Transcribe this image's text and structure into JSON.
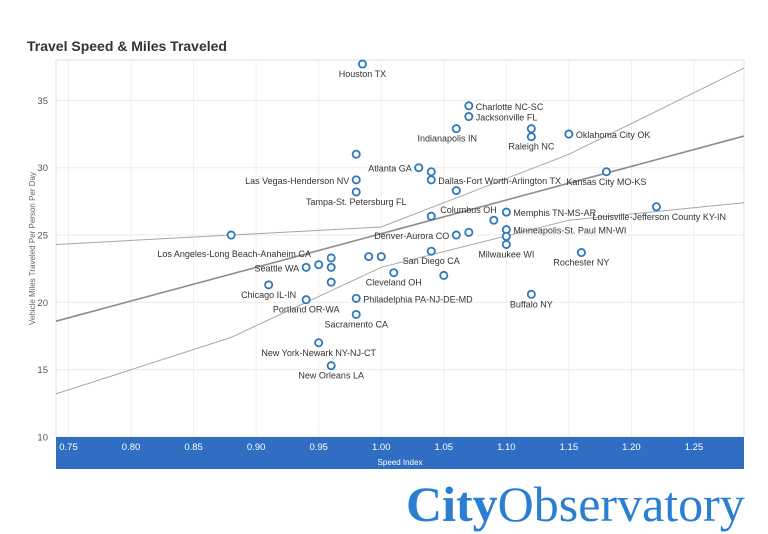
{
  "chart_data": {
    "type": "scatter",
    "title": "Travel Speed & Miles Traveled",
    "xlabel": "Speed Index",
    "ylabel": "Vehicle Miles Traveled Per Person Per Day",
    "xlim": [
      0.74,
      1.29
    ],
    "ylim": [
      10,
      38
    ],
    "xticks": [
      "0.75",
      "0.80",
      "0.85",
      "0.90",
      "0.95",
      "1.00",
      "1.05",
      "1.10",
      "1.15",
      "1.20",
      "1.25"
    ],
    "yticks": [
      "10",
      "15",
      "20",
      "25",
      "30",
      "35"
    ],
    "grid": true,
    "points": [
      {
        "x": 0.985,
        "y": 37.7,
        "label": "Houston TX"
      },
      {
        "x": 1.07,
        "y": 34.6,
        "label": "Charlotte NC-SC"
      },
      {
        "x": 1.07,
        "y": 33.8,
        "label": "Jacksonville FL"
      },
      {
        "x": 1.06,
        "y": 32.9,
        "label": "Indianapolis IN"
      },
      {
        "x": 1.12,
        "y": 32.9,
        "label": ""
      },
      {
        "x": 1.12,
        "y": 32.3,
        "label": "Raleigh NC"
      },
      {
        "x": 1.15,
        "y": 32.5,
        "label": "Oklahoma City OK"
      },
      {
        "x": 0.98,
        "y": 31.0,
        "label": ""
      },
      {
        "x": 1.03,
        "y": 30.0,
        "label": "Atlanta GA"
      },
      {
        "x": 1.04,
        "y": 29.7,
        "label": ""
      },
      {
        "x": 1.04,
        "y": 29.1,
        "label": "Dallas-Fort Worth-Arlington TX"
      },
      {
        "x": 0.98,
        "y": 29.1,
        "label": "Las Vegas-Henderson NV"
      },
      {
        "x": 1.18,
        "y": 29.7,
        "label": "Kansas City MO-KS"
      },
      {
        "x": 0.98,
        "y": 28.2,
        "label": "Tampa-St. Petersburg FL"
      },
      {
        "x": 1.06,
        "y": 28.3,
        "label": ""
      },
      {
        "x": 1.22,
        "y": 27.1,
        "label": "Louisville-Jefferson County KY-IN"
      },
      {
        "x": 1.1,
        "y": 26.7,
        "label": "Memphis TN-MS-AR"
      },
      {
        "x": 1.04,
        "y": 26.4,
        "label": "Columbus OH"
      },
      {
        "x": 1.09,
        "y": 26.1,
        "label": ""
      },
      {
        "x": 1.1,
        "y": 25.4,
        "label": "Minneapolis-St. Paul MN-WI"
      },
      {
        "x": 1.1,
        "y": 24.9,
        "label": ""
      },
      {
        "x": 1.07,
        "y": 25.2,
        "label": ""
      },
      {
        "x": 1.06,
        "y": 25.0,
        "label": "Denver-Aurora CO"
      },
      {
        "x": 1.1,
        "y": 24.3,
        "label": "Milwaukee WI"
      },
      {
        "x": 0.88,
        "y": 25.0,
        "label": "Los Angeles-Long Beach-Anaheim CA"
      },
      {
        "x": 1.04,
        "y": 23.8,
        "label": "San Diego CA"
      },
      {
        "x": 1.16,
        "y": 23.7,
        "label": "Rochester NY"
      },
      {
        "x": 0.99,
        "y": 23.4,
        "label": ""
      },
      {
        "x": 1.0,
        "y": 23.4,
        "label": ""
      },
      {
        "x": 0.96,
        "y": 23.3,
        "label": ""
      },
      {
        "x": 0.95,
        "y": 22.8,
        "label": ""
      },
      {
        "x": 0.96,
        "y": 22.6,
        "label": ""
      },
      {
        "x": 0.94,
        "y": 22.6,
        "label": "Seattle WA"
      },
      {
        "x": 1.01,
        "y": 22.2,
        "label": "Cleveland OH"
      },
      {
        "x": 1.05,
        "y": 22.0,
        "label": ""
      },
      {
        "x": 0.96,
        "y": 21.5,
        "label": ""
      },
      {
        "x": 0.91,
        "y": 21.3,
        "label": "Chicago IL-IN"
      },
      {
        "x": 0.98,
        "y": 20.3,
        "label": "Philadelphia PA-NJ-DE-MD"
      },
      {
        "x": 0.94,
        "y": 20.2,
        "label": "Portland OR-WA"
      },
      {
        "x": 1.12,
        "y": 20.6,
        "label": "Buffalo NY"
      },
      {
        "x": 0.98,
        "y": 19.1,
        "label": "Sacramento CA"
      },
      {
        "x": 0.95,
        "y": 17.0,
        "label": "New York-Newark NY-NJ-CT"
      },
      {
        "x": 0.96,
        "y": 15.3,
        "label": "New Orleans LA"
      }
    ],
    "trend": {
      "slope": 25.0,
      "intercept": 0.1
    },
    "band": {
      "upper": [
        [
          0.74,
          24.3
        ],
        [
          1.0,
          25.6
        ],
        [
          1.15,
          31.0
        ],
        [
          1.29,
          37.4
        ]
      ],
      "lower": [
        [
          0.74,
          13.2
        ],
        [
          0.88,
          17.4
        ],
        [
          1.0,
          22.6
        ],
        [
          1.15,
          26.1
        ],
        [
          1.29,
          27.4
        ]
      ]
    }
  },
  "brand": {
    "part1": "City",
    "part2": "Observatory"
  }
}
